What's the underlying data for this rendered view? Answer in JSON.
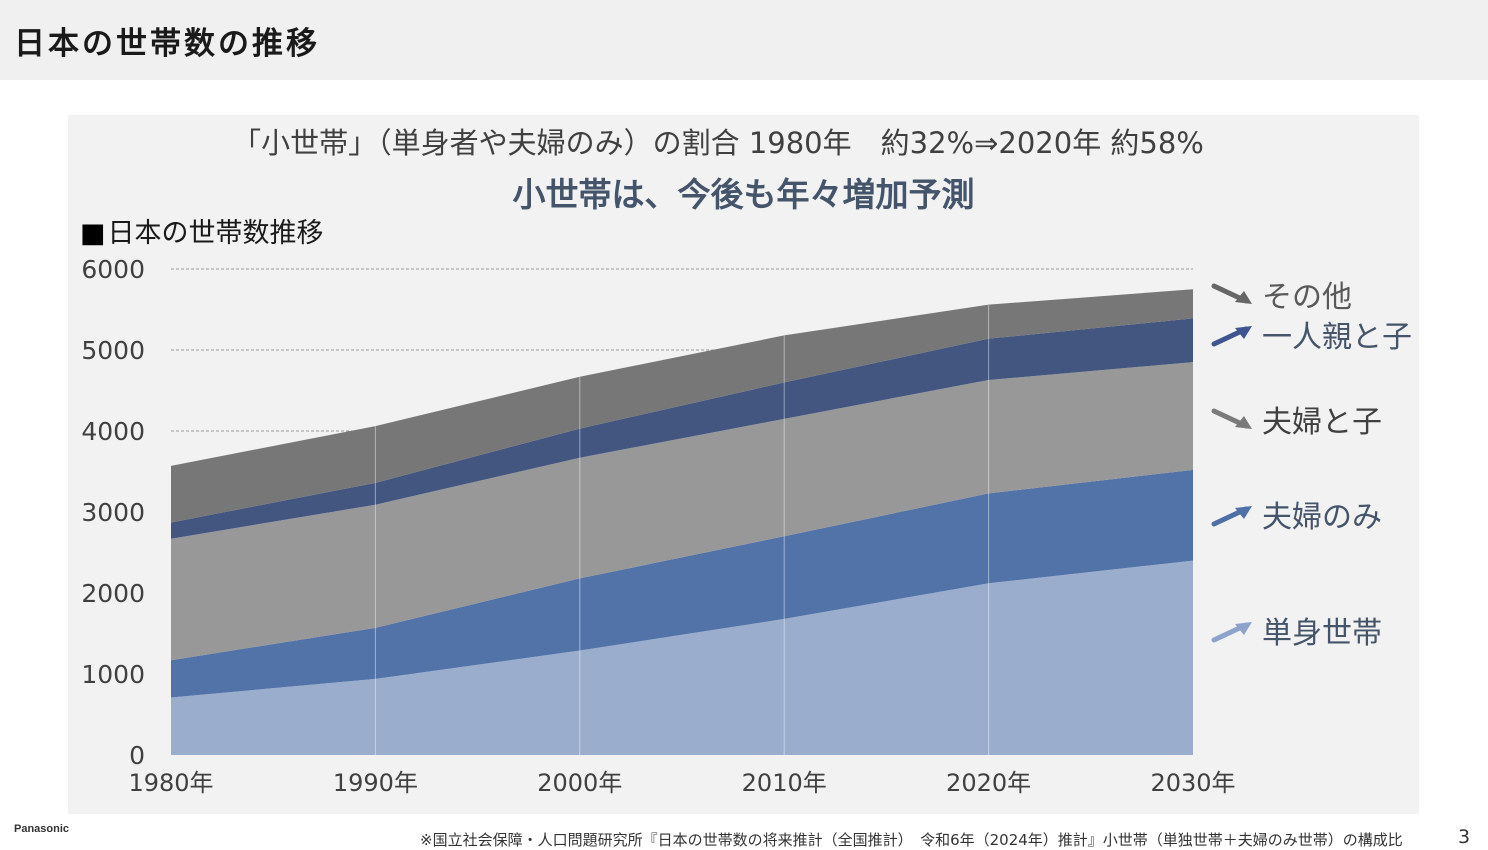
{
  "page": {
    "title": "日本の世帯数の推移",
    "logo": "Panasonic",
    "page_number": "3",
    "source_note": "※国立社会保障・人口問題研究所『日本の世帯数の将来推計（全国推計）　令和6年（2024年）推計』小世帯（単独世帯＋夫婦のみ世帯）の構成比"
  },
  "slide": {
    "subtitle": "「小世帯」（単身者や夫婦のみ）の割合 1980年　約32%⇒2020年 約58%",
    "headline": "小世帯は、今後も年々増加予測",
    "chart_label_square": "■",
    "chart_label": "日本の世帯数推移"
  },
  "chart_data": {
    "type": "area",
    "stacked": true,
    "title": "日本の世帯数推移",
    "categories": [
      "1980年",
      "1990年",
      "2000年",
      "2010年",
      "2020年",
      "2030年"
    ],
    "ylim": [
      0,
      6000
    ],
    "yticks": [
      0,
      1000,
      2000,
      3000,
      4000,
      5000,
      6000
    ],
    "grid": true,
    "legend_position": "right",
    "series": [
      {
        "name": "単身世帯",
        "values": [
          710,
          940,
          1290,
          1680,
          2120,
          2400
        ],
        "color": "#9aadcd"
      },
      {
        "name": "夫婦のみ",
        "values": [
          460,
          630,
          890,
          1020,
          1110,
          1120
        ],
        "color": "#5273a8"
      },
      {
        "name": "夫婦と子",
        "values": [
          1500,
          1520,
          1490,
          1450,
          1400,
          1330
        ],
        "color": "#989898"
      },
      {
        "name": "一人親と子",
        "values": [
          200,
          270,
          360,
          450,
          510,
          540
        ],
        "color": "#435680"
      },
      {
        "name": "その他",
        "values": [
          700,
          700,
          640,
          580,
          420,
          360
        ],
        "color": "#777777"
      }
    ]
  }
}
